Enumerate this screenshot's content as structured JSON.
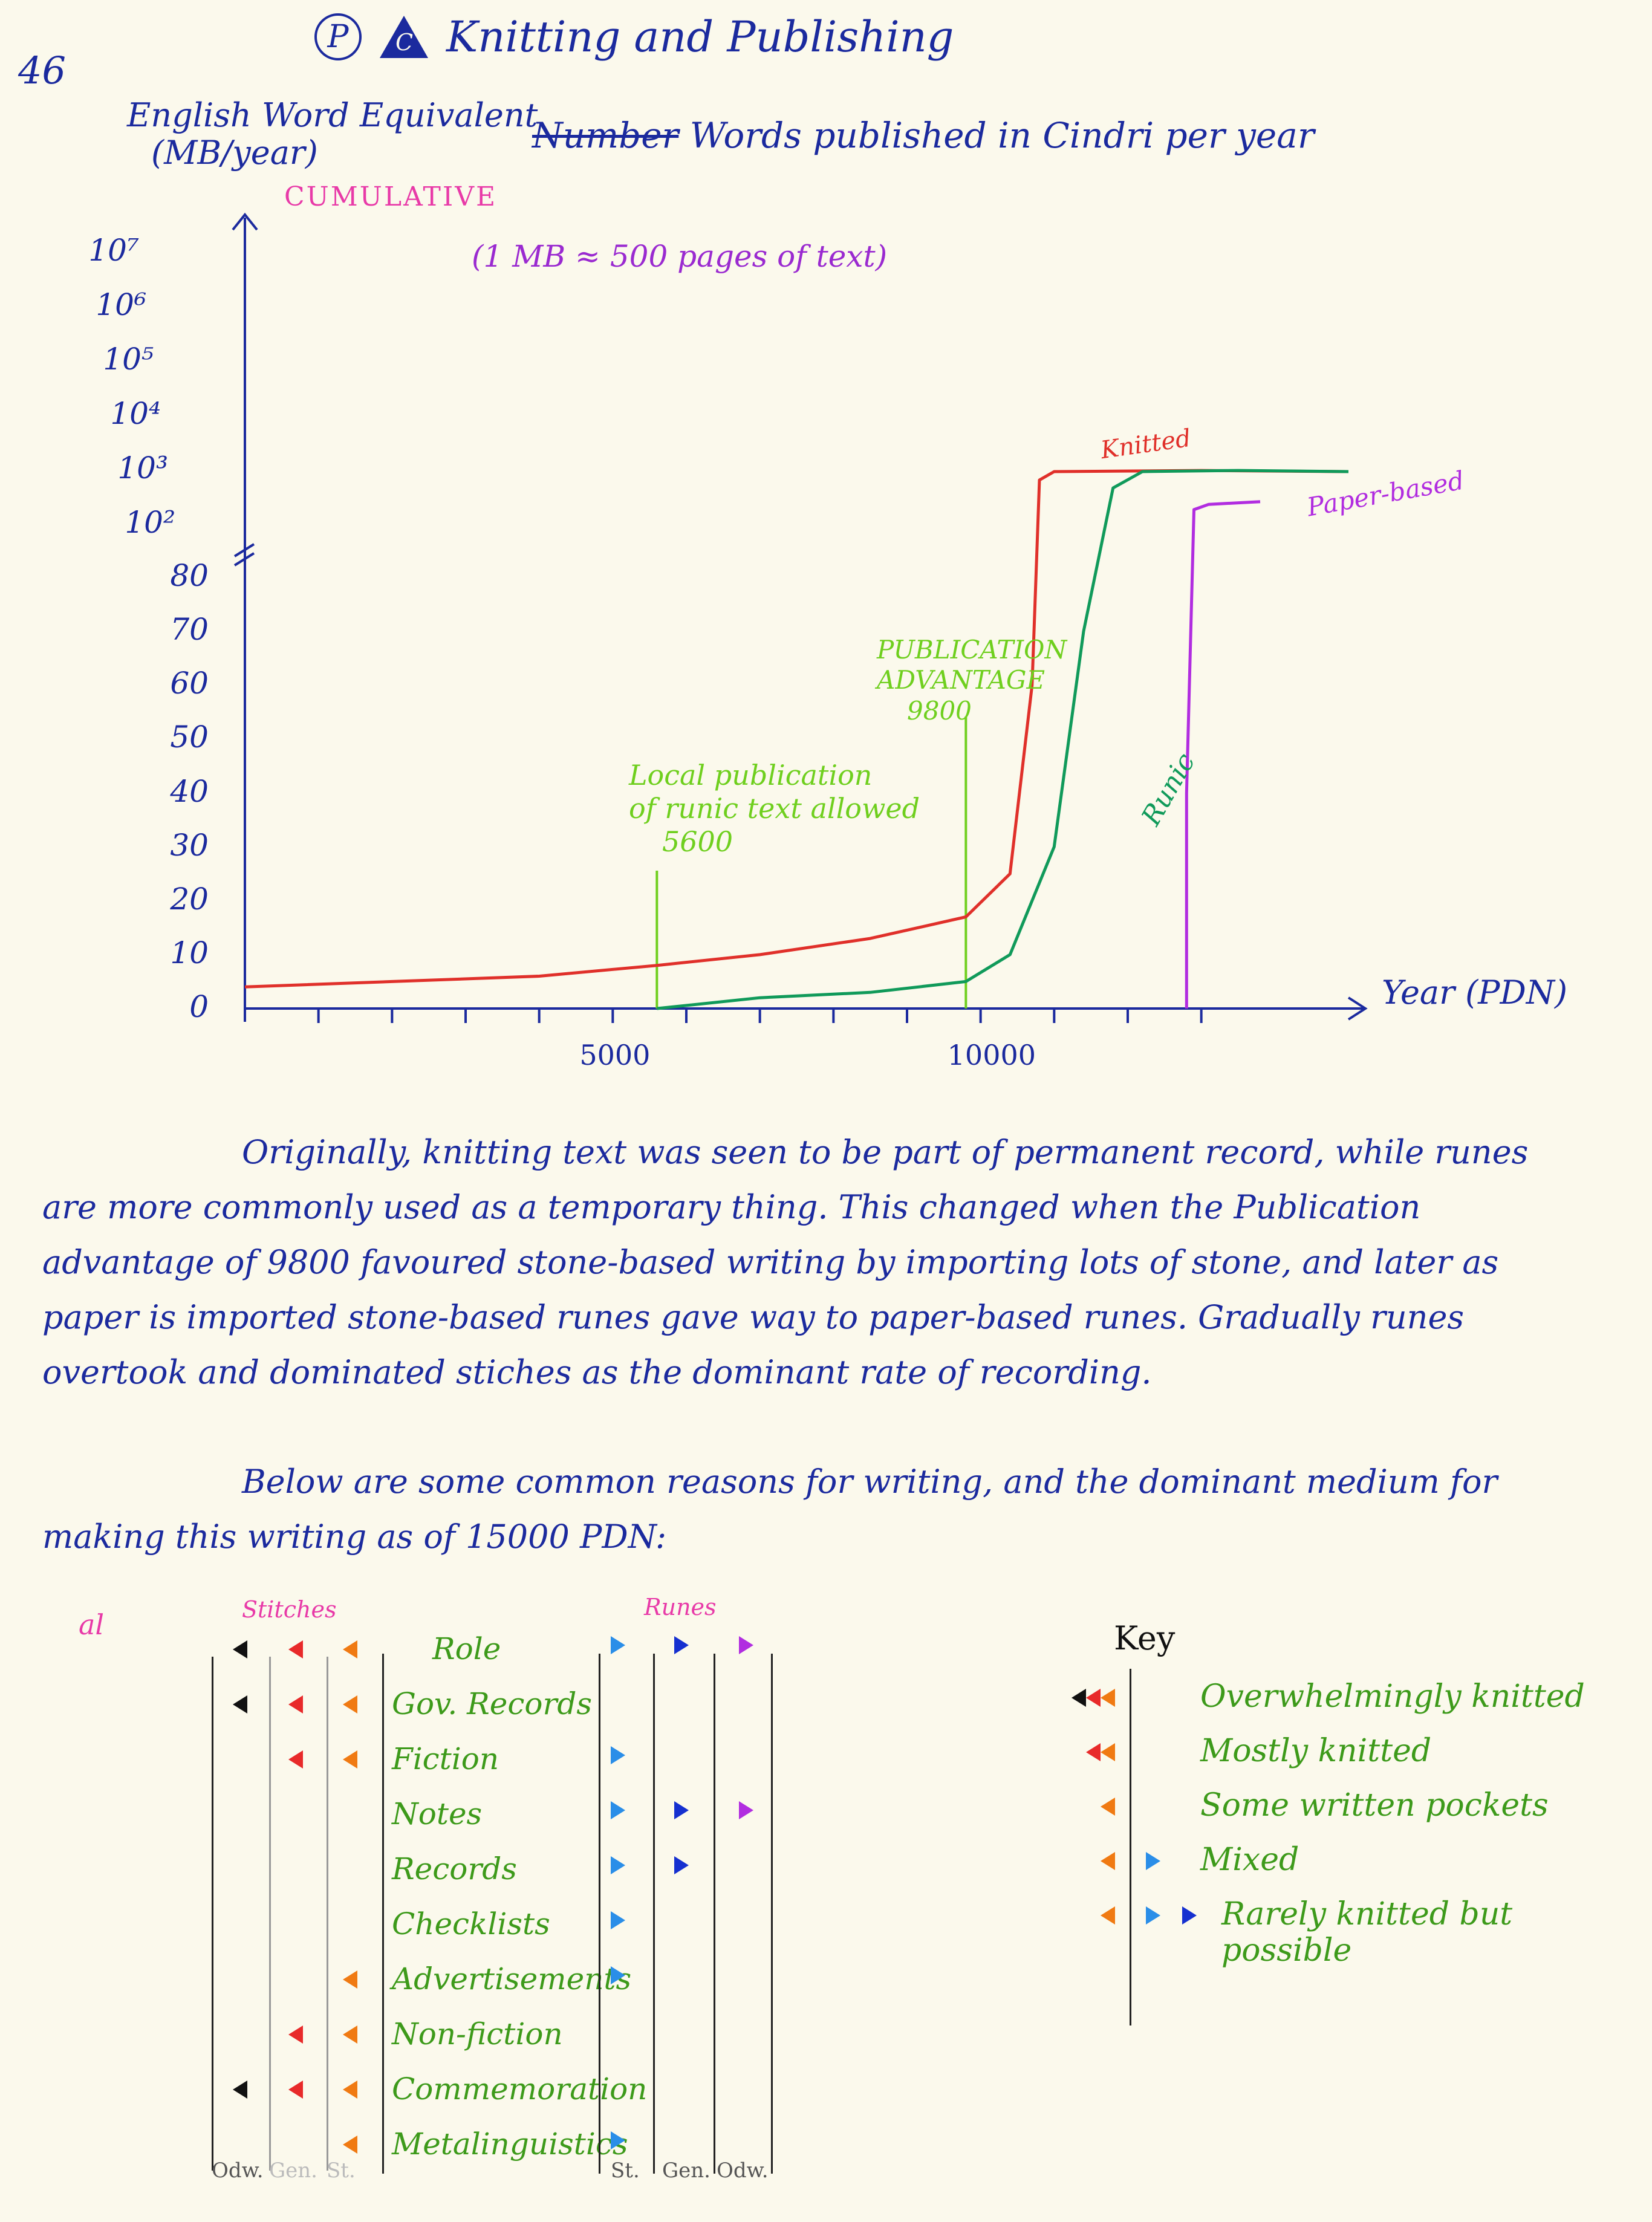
{
  "page_number": "46",
  "title": {
    "circle_letter": "P",
    "triangle_letter": "C",
    "text": "Knitting and Publishing"
  },
  "heading": {
    "crossed_word": "Number",
    "text": "Words published in Cindri per year",
    "cumulative_tag": "CUMULATIVE",
    "mb_note": "(1 MB ≈ 500 pages of text)"
  },
  "chart_data": {
    "type": "line",
    "ylabel_line1": "English Word Equivalent",
    "ylabel_line2": "(MB/year)",
    "xlabel": "Year (PDN)",
    "y_ticks_linear": [
      "0",
      "10",
      "20",
      "30",
      "40",
      "50",
      "60",
      "70",
      "80"
    ],
    "y_ticks_log": [
      "10²",
      "10³",
      "10⁴",
      "10⁵",
      "10⁶",
      "10⁷"
    ],
    "x_ticks": [
      "5000",
      "10000"
    ],
    "series": [
      {
        "name": "Knitted",
        "color": "#e0302a",
        "points": [
          [
            0,
            4
          ],
          [
            2000,
            5
          ],
          [
            4000,
            6
          ],
          [
            5600,
            8
          ],
          [
            7000,
            10
          ],
          [
            8500,
            13
          ],
          [
            9800,
            17
          ],
          [
            10400,
            25
          ],
          [
            10700,
            60
          ],
          [
            10800,
            700
          ],
          [
            11000,
            1000
          ],
          [
            13000,
            1050
          ],
          [
            15000,
            1000
          ]
        ]
      },
      {
        "name": "Runic",
        "color": "#109a5a",
        "points": [
          [
            5600,
            0
          ],
          [
            7000,
            2
          ],
          [
            8500,
            3
          ],
          [
            9800,
            5
          ],
          [
            10400,
            10
          ],
          [
            11000,
            30
          ],
          [
            11400,
            70
          ],
          [
            11800,
            500
          ],
          [
            12200,
            1000
          ],
          [
            13500,
            1050
          ],
          [
            15000,
            1000
          ]
        ]
      },
      {
        "name": "Paper-based",
        "color": "#b12de0",
        "points": [
          [
            12800,
            0
          ],
          [
            12800,
            40
          ],
          [
            12900,
            200
          ],
          [
            13100,
            250
          ],
          [
            13800,
            280
          ]
        ]
      }
    ],
    "annotations": [
      {
        "x": 5600,
        "lines": [
          "Local publication",
          "of runic text allowed",
          "5600"
        ],
        "color": "#6fcf1e"
      },
      {
        "x": 9800,
        "lines": [
          "PUBLICATION",
          "ADVANTAGE",
          "9800"
        ],
        "color": "#6fcf1e"
      }
    ],
    "ylim_linear": [
      0,
      80
    ],
    "ylim_log": [
      100,
      10000000
    ],
    "xlim": [
      0,
      15000
    ]
  },
  "paragraphs": [
    "Originally, knitting text was seen to be part of permanent record, while runes are more commonly used as a temporary thing. This changed when the Publication advantage of 9800 favoured stone-based writing by importing lots of stone, and later as paper is imported stone-based runes gave way to paper-based runes. Gradually runes overtook and dominated stiches as the dominant rate of recording.",
    "Below are some common reasons for writing, and the dominant medium for making this writing as of 15000 PDN:"
  ],
  "table": {
    "al_mark": "al",
    "stitches_header": "Stitches",
    "runes_header": "Runes",
    "rows": [
      {
        "label": "Role",
        "left": [
          "black",
          "red",
          "orange"
        ],
        "right": [
          "blue-light",
          "blue",
          "purple"
        ]
      },
      {
        "label": "Gov. Records",
        "left": [
          "black",
          "red",
          "orange"
        ],
        "right": []
      },
      {
        "label": "Fiction",
        "left": [
          "red",
          "orange"
        ],
        "right": [
          "blue-light"
        ]
      },
      {
        "label": "Notes",
        "left": [],
        "right": [
          "blue-light",
          "blue",
          "purple"
        ]
      },
      {
        "label": "Records",
        "left": [],
        "right": [
          "blue-light",
          "blue"
        ]
      },
      {
        "label": "Checklists",
        "left": [],
        "right": [
          "blue-light"
        ]
      },
      {
        "label": "Advertisements",
        "left": [
          "orange"
        ],
        "right": [
          "blue-light"
        ]
      },
      {
        "label": "Non-fiction",
        "left": [
          "red",
          "orange"
        ],
        "right": []
      },
      {
        "label": "Commemoration",
        "left": [
          "black",
          "red",
          "orange"
        ],
        "right": []
      },
      {
        "label": "Metalinguistics",
        "left": [
          "orange"
        ],
        "right": [
          "blue-light"
        ]
      }
    ],
    "footer_left": [
      "Odw.",
      "Gen.",
      "St."
    ],
    "footer_right": [
      "St.",
      "Gen.",
      "Odw."
    ]
  },
  "key": {
    "header": "Key",
    "items": [
      {
        "label": "Overwhelmingly knitted"
      },
      {
        "label": "Mostly knitted"
      },
      {
        "label": "Some written pockets"
      },
      {
        "label": "Mixed"
      },
      {
        "label": "Rarely knitted but possible"
      }
    ]
  },
  "colors": {
    "ink": "#1b2a9e",
    "black": "#111111",
    "red": "#e82a2a",
    "orange": "#f07a12",
    "blue-light": "#2a8ee8",
    "blue": "#1530d0",
    "purple": "#b12de0",
    "label_green": "#3d9a1a"
  }
}
